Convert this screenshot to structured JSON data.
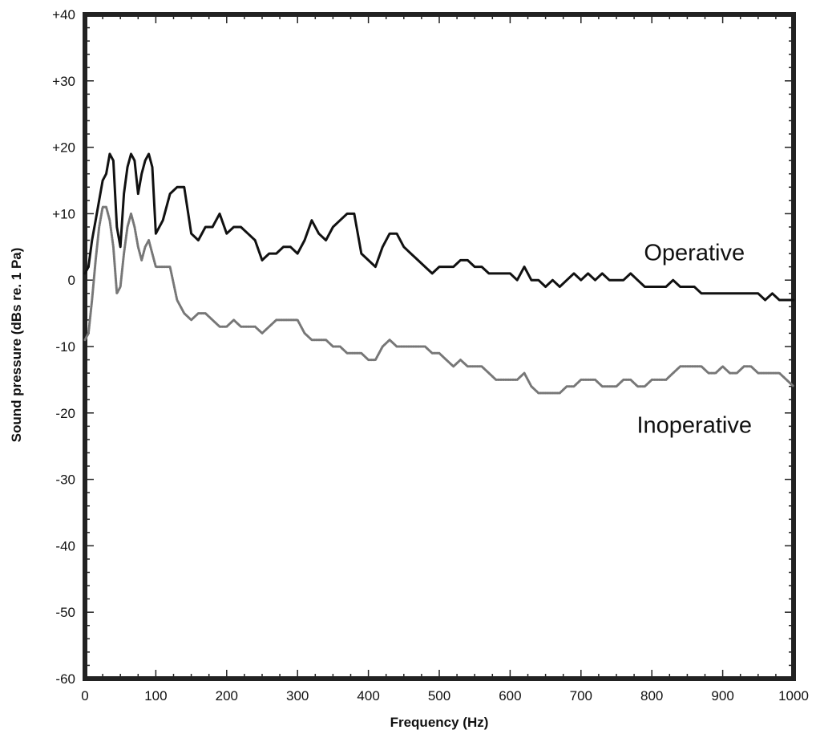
{
  "chart_data": {
    "type": "line",
    "xlabel": "Frequency (Hz)",
    "ylabel": "Sound pressure (dBs re. 1 Pa)",
    "xlim": [
      0,
      1000
    ],
    "ylim": [
      -60,
      40
    ],
    "x_ticks": [
      0,
      100,
      200,
      300,
      400,
      500,
      600,
      700,
      800,
      900,
      1000
    ],
    "x_tick_labels": [
      "0",
      "100",
      "200",
      "300",
      "400",
      "500",
      "600",
      "700",
      "800",
      "900",
      "1000"
    ],
    "y_ticks": [
      40,
      30,
      20,
      10,
      0,
      -10,
      -20,
      -30,
      -40,
      -50,
      -60
    ],
    "y_tick_labels": [
      "+40",
      "+30",
      "+20",
      "+10",
      "0",
      "-10",
      "-20",
      "-30",
      "-40",
      "-50",
      "-60"
    ],
    "grid": false,
    "legend": "none",
    "series": [
      {
        "name": "Operative",
        "color": "#111111",
        "style": "solid",
        "points": [
          [
            0,
            1
          ],
          [
            5,
            2
          ],
          [
            10,
            6
          ],
          [
            15,
            9
          ],
          [
            20,
            12
          ],
          [
            25,
            15
          ],
          [
            30,
            16
          ],
          [
            35,
            19
          ],
          [
            40,
            18
          ],
          [
            45,
            8
          ],
          [
            50,
            5
          ],
          [
            55,
            13
          ],
          [
            60,
            17
          ],
          [
            65,
            19
          ],
          [
            70,
            18
          ],
          [
            75,
            13
          ],
          [
            80,
            16
          ],
          [
            85,
            18
          ],
          [
            90,
            19
          ],
          [
            95,
            17
          ],
          [
            100,
            7
          ],
          [
            110,
            9
          ],
          [
            120,
            13
          ],
          [
            130,
            14
          ],
          [
            140,
            14
          ],
          [
            150,
            7
          ],
          [
            160,
            6
          ],
          [
            170,
            8
          ],
          [
            180,
            8
          ],
          [
            190,
            10
          ],
          [
            200,
            7
          ],
          [
            210,
            8
          ],
          [
            220,
            8
          ],
          [
            230,
            7
          ],
          [
            240,
            6
          ],
          [
            250,
            3
          ],
          [
            260,
            4
          ],
          [
            270,
            4
          ],
          [
            280,
            5
          ],
          [
            290,
            5
          ],
          [
            300,
            4
          ],
          [
            310,
            6
          ],
          [
            320,
            9
          ],
          [
            330,
            7
          ],
          [
            340,
            6
          ],
          [
            350,
            8
          ],
          [
            360,
            9
          ],
          [
            370,
            10
          ],
          [
            380,
            10
          ],
          [
            390,
            4
          ],
          [
            400,
            3
          ],
          [
            410,
            2
          ],
          [
            420,
            5
          ],
          [
            430,
            7
          ],
          [
            440,
            7
          ],
          [
            450,
            5
          ],
          [
            460,
            4
          ],
          [
            470,
            3
          ],
          [
            480,
            2
          ],
          [
            490,
            1
          ],
          [
            500,
            2
          ],
          [
            510,
            2
          ],
          [
            520,
            2
          ],
          [
            530,
            3
          ],
          [
            540,
            3
          ],
          [
            550,
            2
          ],
          [
            560,
            2
          ],
          [
            570,
            1
          ],
          [
            580,
            1
          ],
          [
            590,
            1
          ],
          [
            600,
            1
          ],
          [
            610,
            0
          ],
          [
            620,
            2
          ],
          [
            630,
            0
          ],
          [
            640,
            0
          ],
          [
            650,
            -1
          ],
          [
            660,
            0
          ],
          [
            670,
            -1
          ],
          [
            680,
            0
          ],
          [
            690,
            1
          ],
          [
            700,
            0
          ],
          [
            710,
            1
          ],
          [
            720,
            0
          ],
          [
            730,
            1
          ],
          [
            740,
            0
          ],
          [
            750,
            0
          ],
          [
            760,
            0
          ],
          [
            770,
            1
          ],
          [
            780,
            0
          ],
          [
            790,
            -1
          ],
          [
            800,
            -1
          ],
          [
            810,
            -1
          ],
          [
            820,
            -1
          ],
          [
            830,
            0
          ],
          [
            840,
            -1
          ],
          [
            850,
            -1
          ],
          [
            860,
            -1
          ],
          [
            870,
            -2
          ],
          [
            880,
            -2
          ],
          [
            890,
            -2
          ],
          [
            900,
            -2
          ],
          [
            910,
            -2
          ],
          [
            920,
            -2
          ],
          [
            930,
            -2
          ],
          [
            940,
            -2
          ],
          [
            950,
            -2
          ],
          [
            960,
            -3
          ],
          [
            970,
            -2
          ],
          [
            980,
            -3
          ],
          [
            990,
            -3
          ],
          [
            1000,
            -3
          ]
        ]
      },
      {
        "name": "Inoperative",
        "color": "#777777",
        "style": "dotted",
        "points": [
          [
            0,
            -9
          ],
          [
            5,
            -8
          ],
          [
            10,
            -3
          ],
          [
            15,
            3
          ],
          [
            20,
            8
          ],
          [
            25,
            11
          ],
          [
            30,
            11
          ],
          [
            35,
            9
          ],
          [
            40,
            5
          ],
          [
            45,
            -2
          ],
          [
            50,
            -1
          ],
          [
            55,
            4
          ],
          [
            60,
            8
          ],
          [
            65,
            10
          ],
          [
            70,
            8
          ],
          [
            75,
            5
          ],
          [
            80,
            3
          ],
          [
            85,
            5
          ],
          [
            90,
            6
          ],
          [
            95,
            4
          ],
          [
            100,
            2
          ],
          [
            110,
            2
          ],
          [
            120,
            2
          ],
          [
            130,
            -3
          ],
          [
            140,
            -5
          ],
          [
            150,
            -6
          ],
          [
            160,
            -5
          ],
          [
            170,
            -5
          ],
          [
            180,
            -6
          ],
          [
            190,
            -7
          ],
          [
            200,
            -7
          ],
          [
            210,
            -6
          ],
          [
            220,
            -7
          ],
          [
            230,
            -7
          ],
          [
            240,
            -7
          ],
          [
            250,
            -8
          ],
          [
            260,
            -7
          ],
          [
            270,
            -6
          ],
          [
            280,
            -6
          ],
          [
            290,
            -6
          ],
          [
            300,
            -6
          ],
          [
            310,
            -8
          ],
          [
            320,
            -9
          ],
          [
            330,
            -9
          ],
          [
            340,
            -9
          ],
          [
            350,
            -10
          ],
          [
            360,
            -10
          ],
          [
            370,
            -11
          ],
          [
            380,
            -11
          ],
          [
            390,
            -11
          ],
          [
            400,
            -12
          ],
          [
            410,
            -12
          ],
          [
            420,
            -10
          ],
          [
            430,
            -9
          ],
          [
            440,
            -10
          ],
          [
            450,
            -10
          ],
          [
            460,
            -10
          ],
          [
            470,
            -10
          ],
          [
            480,
            -10
          ],
          [
            490,
            -11
          ],
          [
            500,
            -11
          ],
          [
            510,
            -12
          ],
          [
            520,
            -13
          ],
          [
            530,
            -12
          ],
          [
            540,
            -13
          ],
          [
            550,
            -13
          ],
          [
            560,
            -13
          ],
          [
            570,
            -14
          ],
          [
            580,
            -15
          ],
          [
            590,
            -15
          ],
          [
            600,
            -15
          ],
          [
            610,
            -15
          ],
          [
            620,
            -14
          ],
          [
            630,
            -16
          ],
          [
            640,
            -17
          ],
          [
            650,
            -17
          ],
          [
            660,
            -17
          ],
          [
            670,
            -17
          ],
          [
            680,
            -16
          ],
          [
            690,
            -16
          ],
          [
            700,
            -15
          ],
          [
            710,
            -15
          ],
          [
            720,
            -15
          ],
          [
            730,
            -16
          ],
          [
            740,
            -16
          ],
          [
            750,
            -16
          ],
          [
            760,
            -15
          ],
          [
            770,
            -15
          ],
          [
            780,
            -16
          ],
          [
            790,
            -16
          ],
          [
            800,
            -15
          ],
          [
            810,
            -15
          ],
          [
            820,
            -15
          ],
          [
            830,
            -14
          ],
          [
            840,
            -13
          ],
          [
            850,
            -13
          ],
          [
            860,
            -13
          ],
          [
            870,
            -13
          ],
          [
            880,
            -14
          ],
          [
            890,
            -14
          ],
          [
            900,
            -13
          ],
          [
            910,
            -14
          ],
          [
            920,
            -14
          ],
          [
            930,
            -13
          ],
          [
            940,
            -13
          ],
          [
            950,
            -14
          ],
          [
            960,
            -14
          ],
          [
            970,
            -14
          ],
          [
            980,
            -14
          ],
          [
            990,
            -15
          ],
          [
            1000,
            -16
          ]
        ]
      }
    ],
    "annotations": [
      {
        "text": "Operative",
        "x": 860,
        "y": 3
      },
      {
        "text": "Inoperative",
        "x": 860,
        "y": -23
      }
    ]
  }
}
